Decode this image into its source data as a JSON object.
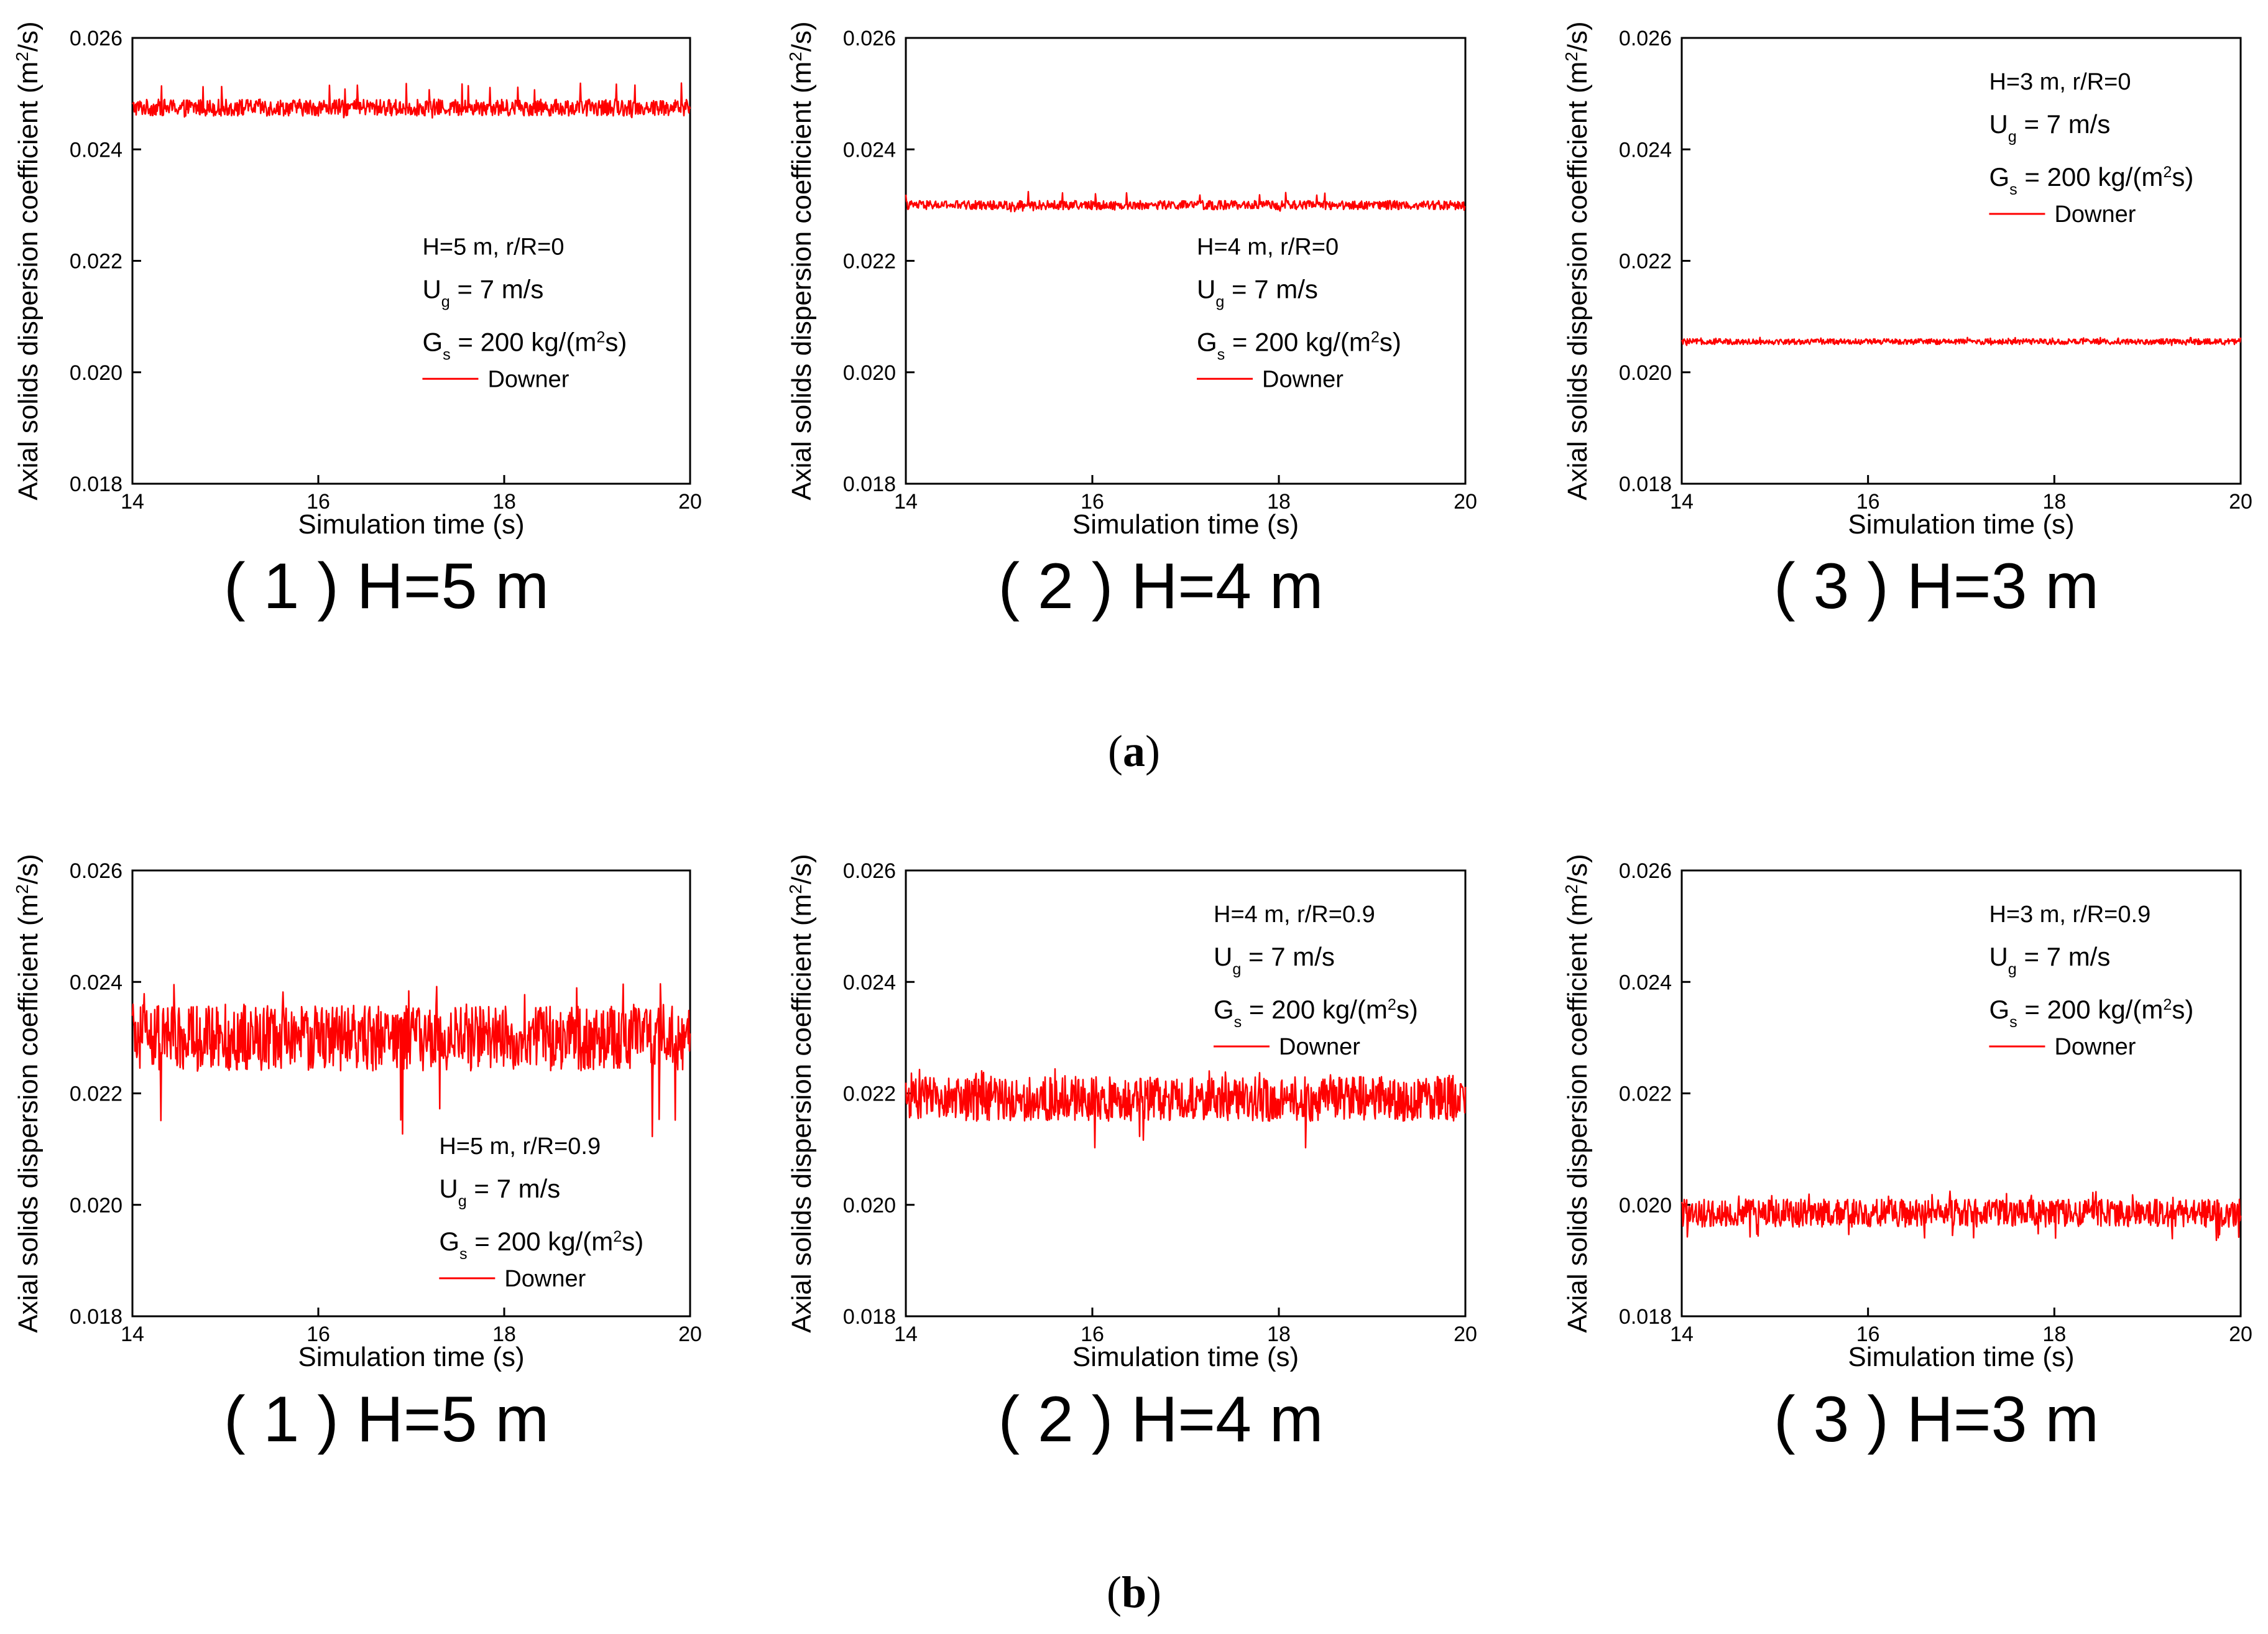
{
  "figure": {
    "group_labels": [
      {
        "open": "(",
        "letter": "a",
        "close": ")"
      },
      {
        "open": "(",
        "letter": "b",
        "close": ")"
      }
    ],
    "colors": {
      "line": "#ff0000",
      "axis": "#000000",
      "text": "#000000"
    }
  },
  "chart_data": [
    {
      "id": "a1",
      "type": "line",
      "group": "a",
      "caption": "( 1 ) H=5 m",
      "ylabel": "Axial solids dispersion coefficient (m2/s)",
      "xlabel": "Simulation time (s)",
      "xlim": [
        14,
        20
      ],
      "ylim": [
        0.018,
        0.026
      ],
      "xticks": [
        "14",
        "16",
        "18",
        "20"
      ],
      "yticks": [
        "0.018",
        "0.020",
        "0.022",
        "0.024",
        "0.026"
      ],
      "legend_lines": [
        "H=5 m, r/R=0",
        "Ug = 7 m/s",
        "Gs = 200 kg/(m2s)"
      ],
      "legend_position": "center-right",
      "series": [
        {
          "name": "Downer",
          "mean": 0.02475,
          "band_min": 0.0246,
          "band_max": 0.0249,
          "spike_max": 0.0252,
          "spike_min": 0.02455
        }
      ]
    },
    {
      "id": "a2",
      "type": "line",
      "group": "a",
      "caption": "( 2 ) H=4 m",
      "ylabel": "Axial solids dispersion coefficient (m2/s)",
      "xlabel": "Simulation time (s)",
      "xlim": [
        14,
        20
      ],
      "ylim": [
        0.018,
        0.026
      ],
      "xticks": [
        "14",
        "16",
        "18",
        "20"
      ],
      "yticks": [
        "0.018",
        "0.020",
        "0.022",
        "0.024",
        "0.026"
      ],
      "legend_lines": [
        "H=4 m, r/R=0",
        "Ug = 7 m/s",
        "Gs = 200 kg/(m2s)"
      ],
      "legend_position": "center-right",
      "series": [
        {
          "name": "Downer",
          "mean": 0.023,
          "band_min": 0.02292,
          "band_max": 0.02308,
          "spike_max": 0.02325,
          "spike_min": 0.02288
        }
      ]
    },
    {
      "id": "a3",
      "type": "line",
      "group": "a",
      "caption": "( 3 ) H=3 m",
      "ylabel": "Axial solids dispersion coefficient (m2/s)",
      "xlabel": "Simulation time (s)",
      "xlim": [
        14,
        20
      ],
      "ylim": [
        0.018,
        0.026
      ],
      "xticks": [
        "14",
        "16",
        "18",
        "20"
      ],
      "yticks": [
        "0.018",
        "0.020",
        "0.022",
        "0.024",
        "0.026"
      ],
      "legend_lines": [
        "H=3 m, r/R=0",
        "Ug = 7 m/s",
        "Gs = 200 kg/(m2s)"
      ],
      "legend_position": "top-right",
      "series": [
        {
          "name": "Downer",
          "mean": 0.02055,
          "band_min": 0.0205,
          "band_max": 0.0206,
          "spike_max": 0.02063,
          "spike_min": 0.02048
        }
      ]
    },
    {
      "id": "b1",
      "type": "line",
      "group": "b",
      "caption": "( 1 ) H=5 m",
      "ylabel": "Axial solids dispersion coefficient (m2/s)",
      "xlabel": "Simulation time (s)",
      "xlim": [
        14,
        20
      ],
      "ylim": [
        0.018,
        0.026
      ],
      "xticks": [
        "14",
        "16",
        "18",
        "20"
      ],
      "yticks": [
        "0.018",
        "0.020",
        "0.022",
        "0.024",
        "0.026"
      ],
      "legend_lines": [
        "H=5 m, r/R=0.9",
        "Ug = 7 m/s",
        "Gs = 200 kg/(m2s)"
      ],
      "legend_position": "bottom-right",
      "series": [
        {
          "name": "Downer",
          "mean": 0.023,
          "band_min": 0.0224,
          "band_max": 0.0236,
          "spike_max": 0.024,
          "spike_min": 0.0212
        }
      ]
    },
    {
      "id": "b2",
      "type": "line",
      "group": "b",
      "caption": "( 2 ) H=4 m",
      "ylabel": "Axial solids dispersion coefficient (m2/s)",
      "xlabel": "Simulation time (s)",
      "xlim": [
        14,
        20
      ],
      "ylim": [
        0.018,
        0.026
      ],
      "xticks": [
        "14",
        "16",
        "18",
        "20"
      ],
      "yticks": [
        "0.018",
        "0.020",
        "0.022",
        "0.024",
        "0.026"
      ],
      "legend_lines": [
        "H=4 m, r/R=0.9",
        "Ug = 7 m/s",
        "Gs = 200 kg/(m2s)"
      ],
      "legend_position": "top-right",
      "series": [
        {
          "name": "Downer",
          "mean": 0.0219,
          "band_min": 0.0215,
          "band_max": 0.0223,
          "spike_max": 0.02245,
          "spike_min": 0.021
        }
      ]
    },
    {
      "id": "b3",
      "type": "line",
      "group": "b",
      "caption": "( 3 ) H=3 m",
      "ylabel": "Axial solids dispersion coefficient (m2/s)",
      "xlabel": "Simulation time (s)",
      "xlim": [
        14,
        20
      ],
      "ylim": [
        0.018,
        0.026
      ],
      "xticks": [
        "14",
        "16",
        "18",
        "20"
      ],
      "yticks": [
        "0.018",
        "0.020",
        "0.022",
        "0.024",
        "0.026"
      ],
      "legend_lines": [
        "H=3 m, r/R=0.9",
        "Ug = 7 m/s",
        "Gs = 200 kg/(m2s)"
      ],
      "legend_position": "top-right",
      "series": [
        {
          "name": "Downer",
          "mean": 0.01985,
          "band_min": 0.0196,
          "band_max": 0.0201,
          "spike_max": 0.02025,
          "spike_min": 0.01935
        }
      ]
    }
  ]
}
